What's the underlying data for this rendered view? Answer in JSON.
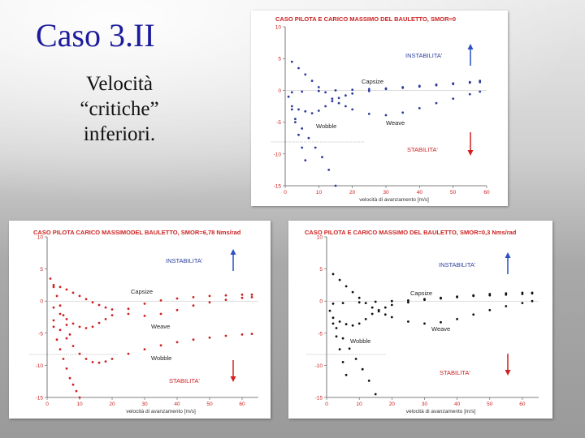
{
  "slide": {
    "title": "Caso 3.II",
    "subtitle_lines": [
      "Velocità",
      "“critiche”",
      "inferiori."
    ]
  },
  "labels": {
    "instabilita": "INSTABILITA'",
    "stabilita": "STABILITA'",
    "capsize": "Capsize",
    "weave": "Weave",
    "wobble": "Wobble"
  },
  "colors": {
    "panel0_series": "#2d3a9a",
    "panel1_series": "#cc2222",
    "panel2_series": "#111111",
    "title_red": "#cc2222",
    "arrow_up": "#2b4fc4",
    "arrow_down": "#d02020",
    "axis": "#555555",
    "tick_red": "#cc2222"
  },
  "chart_data": [
    {
      "type": "scatter",
      "title": "CASO PILOTA E CARICO MASSIMO DEL BAULETTO, SMOR=0",
      "xlabel": "velocità di avanzamento [m/s]",
      "ylabel": "",
      "xlim": [
        0,
        60
      ],
      "ylim": [
        -15,
        10
      ],
      "xticks": [
        "0",
        "10",
        "20",
        "30",
        "40",
        "50",
        "60"
      ],
      "yticks": [
        "10",
        "5",
        "0",
        "-5",
        "-10",
        "-15"
      ],
      "grid": false,
      "series": [
        {
          "x": [
            2,
            5,
            10,
            15,
            20,
            25,
            30,
            35,
            40,
            45,
            50,
            55,
            58
          ],
          "y": [
            -0.3,
            -0.2,
            -0.1,
            0.0,
            0.1,
            0.2,
            0.3,
            0.5,
            0.7,
            0.9,
            1.1,
            1.3,
            1.5
          ]
        },
        {
          "x": [
            2,
            4,
            6,
            8,
            10,
            12,
            14,
            16,
            18,
            20,
            25,
            30,
            35,
            40,
            45,
            50,
            55,
            58
          ],
          "y": [
            4.5,
            3.5,
            2.5,
            1.5,
            0.5,
            -0.3,
            -1.3,
            -2.0,
            -2.5,
            -3.0,
            -3.7,
            -3.9,
            -3.5,
            -2.8,
            -2.0,
            -1.3,
            -0.6,
            -0.2
          ]
        },
        {
          "x": [
            2,
            4,
            6,
            8,
            10,
            12,
            14,
            16,
            18,
            20,
            25,
            30,
            35,
            40,
            45,
            50,
            55,
            58
          ],
          "y": [
            -2.5,
            -3.0,
            -3.3,
            -3.6,
            -3.2,
            -2.5,
            -1.7,
            -1.2,
            -0.8,
            -0.5,
            -0.1,
            0.2,
            0.4,
            0.6,
            0.8,
            1.0,
            1.2,
            1.3
          ]
        },
        {
          "x": [
            3,
            5,
            7,
            9,
            11,
            13,
            15
          ],
          "y": [
            -4.5,
            -6.0,
            -7.5,
            -9.0,
            -10.5,
            -12.5,
            -15.0
          ]
        },
        {
          "x": [
            1,
            2,
            3,
            4,
            5,
            6
          ],
          "y": [
            -1.0,
            -3.0,
            -5.0,
            -7.0,
            -9.0,
            -11.0
          ]
        }
      ]
    },
    {
      "type": "scatter",
      "title": "CASO PILOTA CARICO MASSIMODEL BAULETTO, SMOR=6,78 Nms/rad",
      "xlabel": "velocità di avanzamento [m/s]",
      "ylabel": "",
      "xlim": [
        0,
        65
      ],
      "ylim": [
        -15,
        10
      ],
      "xticks": [
        "0",
        "10",
        "20",
        "30",
        "40",
        "50",
        "60"
      ],
      "yticks": [
        "10",
        "5",
        "0",
        "-5",
        "-10",
        "-15"
      ],
      "grid": false,
      "series": [
        {
          "x": [
            2,
            4,
            6,
            8,
            10,
            12,
            14,
            16,
            18,
            20,
            25,
            30,
            35,
            40,
            45,
            50,
            55,
            60,
            63
          ],
          "y": [
            2.5,
            2.2,
            1.8,
            1.3,
            0.8,
            0.3,
            -0.2,
            -0.6,
            -1.0,
            -1.3,
            -2.0,
            -2.3,
            -2.0,
            -1.4,
            -0.7,
            -0.2,
            0.2,
            0.5,
            0.6
          ]
        },
        {
          "x": [
            2,
            4,
            6,
            8,
            10,
            12,
            14,
            16,
            18,
            20,
            25,
            30,
            35,
            40,
            45,
            50,
            55,
            60,
            63
          ],
          "y": [
            -1.0,
            -2.0,
            -2.8,
            -3.5,
            -4.0,
            -4.2,
            -4.0,
            -3.4,
            -2.8,
            -2.2,
            -1.2,
            -0.4,
            0.1,
            0.4,
            0.6,
            0.8,
            0.9,
            1.0,
            1.0
          ]
        },
        {
          "x": [
            2,
            4,
            6,
            8,
            10,
            12,
            14,
            16,
            18,
            20,
            25,
            30,
            35,
            40,
            45,
            50,
            55,
            60,
            63
          ],
          "y": [
            -3.0,
            -4.5,
            -5.8,
            -7.0,
            -8.2,
            -9.0,
            -9.5,
            -9.6,
            -9.4,
            -9.0,
            -8.2,
            -7.5,
            -6.9,
            -6.4,
            -6.0,
            -5.7,
            -5.4,
            -5.2,
            -5.1
          ]
        },
        {
          "x": [
            2,
            3,
            4,
            5,
            6,
            7,
            8,
            9,
            10
          ],
          "y": [
            -4.0,
            -6.0,
            -7.5,
            -9.0,
            -10.5,
            -12.0,
            -13.0,
            -14.0,
            -15.0
          ]
        },
        {
          "x": [
            1,
            2,
            3,
            4,
            5,
            6,
            7
          ],
          "y": [
            3.5,
            2.2,
            0.8,
            -0.7,
            -2.2,
            -3.7,
            -5.2
          ]
        }
      ]
    },
    {
      "type": "scatter",
      "title": "CASO PILOTA E CARICO MASSIMO DEL BAULETTO, SMOR=0,3 Nms/rad",
      "xlabel": "velocità di avanzamento [m/s]",
      "ylabel": "",
      "xlim": [
        0,
        65
      ],
      "ylim": [
        -15,
        10
      ],
      "xticks": [
        "0",
        "10",
        "20",
        "30",
        "40",
        "50",
        "60"
      ],
      "yticks": [
        "10",
        "5",
        "0",
        "-5",
        "-10",
        "-15"
      ],
      "grid": false,
      "series": [
        {
          "x": [
            2,
            5,
            10,
            15,
            20,
            25,
            30,
            35,
            40,
            45,
            50,
            55,
            60,
            63
          ],
          "y": [
            -0.4,
            -0.3,
            -0.2,
            -0.1,
            0.0,
            0.1,
            0.3,
            0.5,
            0.7,
            0.9,
            1.1,
            1.2,
            1.3,
            1.3
          ]
        },
        {
          "x": [
            2,
            4,
            6,
            8,
            10,
            12,
            14,
            16,
            18,
            20,
            25,
            30,
            35,
            40,
            45,
            50,
            55,
            60,
            63
          ],
          "y": [
            4.2,
            3.3,
            2.3,
            1.4,
            0.5,
            -0.3,
            -1.0,
            -1.6,
            -2.1,
            -2.5,
            -3.2,
            -3.5,
            -3.3,
            -2.8,
            -2.1,
            -1.4,
            -0.8,
            -0.3,
            0.0
          ]
        },
        {
          "x": [
            2,
            4,
            6,
            8,
            10,
            12,
            14,
            16,
            18,
            20,
            25,
            30,
            35,
            40,
            45,
            50,
            55,
            60,
            63
          ],
          "y": [
            -2.6,
            -3.2,
            -3.6,
            -3.8,
            -3.5,
            -2.8,
            -2.0,
            -1.4,
            -1.0,
            -0.6,
            -0.2,
            0.2,
            0.4,
            0.6,
            0.8,
            0.9,
            1.0,
            1.1,
            1.2
          ]
        },
        {
          "x": [
            3,
            5,
            7,
            9,
            11,
            13,
            15
          ],
          "y": [
            -4.2,
            -5.8,
            -7.4,
            -9.0,
            -10.6,
            -12.4,
            -14.5
          ]
        },
        {
          "x": [
            1,
            2,
            3,
            4,
            5,
            6
          ],
          "y": [
            -1.5,
            -3.5,
            -5.5,
            -7.5,
            -9.5,
            -11.5
          ]
        }
      ]
    }
  ]
}
